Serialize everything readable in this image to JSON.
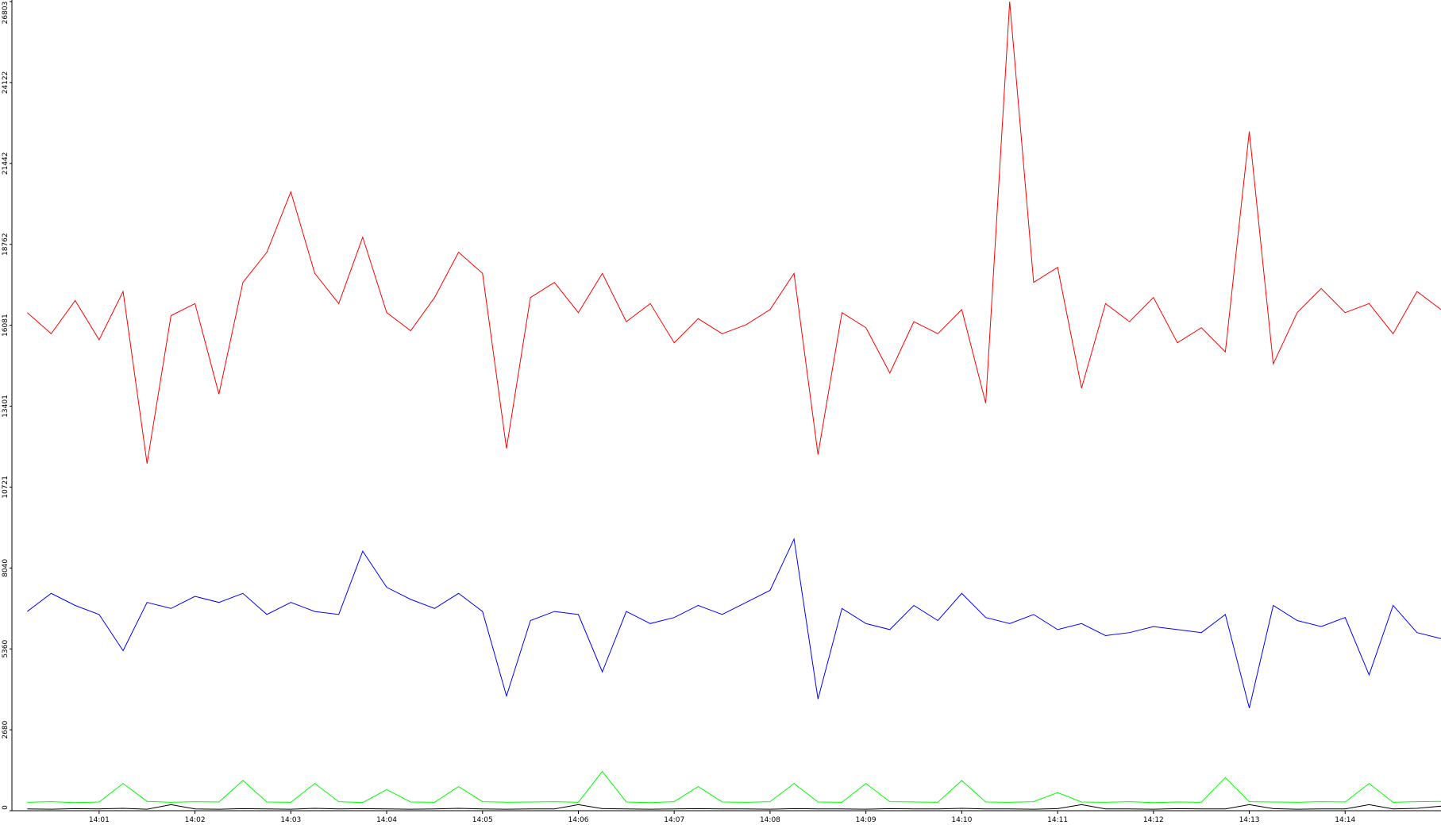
{
  "chart_data": {
    "type": "line",
    "x": [
      0.25,
      0.5,
      0.75,
      1,
      1.25,
      1.5,
      1.75,
      2,
      2.25,
      2.5,
      2.75,
      3,
      3.25,
      3.5,
      3.75,
      4,
      4.25,
      4.5,
      4.75,
      5,
      5.25,
      5.5,
      5.75,
      6,
      6.25,
      6.5,
      6.75,
      7,
      7.25,
      7.5,
      7.75,
      8,
      8.25,
      8.5,
      8.75,
      9,
      9.25,
      9.5,
      9.75,
      10,
      10.25,
      10.5,
      10.75,
      11,
      11.25,
      11.5,
      11.75,
      12,
      12.25,
      12.5,
      12.75,
      13,
      13.25,
      13.5,
      13.75,
      14,
      14.25,
      14.5,
      14.75,
      15
    ],
    "series": [
      {
        "color": "#ff0000",
        "values": [
          16500,
          15800,
          16900,
          15600,
          17200,
          11500,
          16400,
          16800,
          13800,
          17500,
          18500,
          20500,
          17800,
          16800,
          19000,
          16500,
          15900,
          17000,
          18500,
          17800,
          12000,
          17000,
          17500,
          16500,
          17800,
          16200,
          16800,
          15500,
          16300,
          15800,
          16100,
          16600,
          17800,
          11800,
          16500,
          16000,
          14500,
          16200,
          15800,
          16600,
          13500,
          26803,
          17500,
          18000,
          14000,
          16800,
          16200,
          17000,
          15500,
          16000,
          15200,
          22500,
          14800,
          16500,
          17300,
          16500,
          16800,
          15800,
          17200,
          16600
        ]
      },
      {
        "color": "#0000ff",
        "values": [
          6600,
          7200,
          6800,
          6500,
          5300,
          6900,
          6700,
          7100,
          6900,
          7200,
          6500,
          6900,
          6600,
          6500,
          8600,
          7400,
          7000,
          6700,
          7200,
          6600,
          3800,
          6300,
          6600,
          6500,
          4600,
          6600,
          6200,
          6400,
          6800,
          6500,
          6900,
          7300,
          9000,
          3700,
          6700,
          6200,
          6000,
          6800,
          6300,
          7200,
          6400,
          6200,
          6500,
          6000,
          6200,
          5800,
          5900,
          6100,
          6000,
          5900,
          6500,
          3400,
          6800,
          6300,
          6100,
          6400,
          4500,
          6800,
          5900,
          5700
        ]
      },
      {
        "color": "#00ff00",
        "values": [
          280,
          300,
          270,
          290,
          900,
          310,
          280,
          300,
          290,
          1000,
          290,
          280,
          900,
          300,
          270,
          700,
          290,
          280,
          800,
          300,
          280,
          290,
          300,
          280,
          1300,
          290,
          270,
          300,
          800,
          290,
          280,
          300,
          900,
          290,
          280,
          900,
          300,
          290,
          280,
          1000,
          290,
          280,
          300,
          600,
          290,
          280,
          300,
          270,
          290,
          280,
          1100,
          300,
          290,
          280,
          300,
          290,
          900,
          280,
          300,
          310
        ]
      },
      {
        "color": "#000000",
        "values": [
          60,
          50,
          70,
          60,
          80,
          50,
          200,
          60,
          50,
          70,
          60,
          50,
          80,
          60,
          70,
          60,
          50,
          60,
          80,
          60,
          50,
          60,
          60,
          200,
          70,
          60,
          50,
          60,
          70,
          60,
          60,
          50,
          70,
          60,
          60,
          50,
          70,
          60,
          60,
          80,
          60,
          60,
          50,
          70,
          200,
          60,
          60,
          50,
          70,
          60,
          60,
          200,
          70,
          50,
          60,
          60,
          200,
          60,
          80,
          150
        ]
      }
    ],
    "xlim": [
      0.09,
      15
    ],
    "xticks": [
      {
        "value": 1,
        "label": "14:01"
      },
      {
        "value": 2,
        "label": "14:02"
      },
      {
        "value": 3,
        "label": "14:03"
      },
      {
        "value": 4,
        "label": "14:04"
      },
      {
        "value": 5,
        "label": "14:05"
      },
      {
        "value": 6,
        "label": "14:06"
      },
      {
        "value": 7,
        "label": "14:07"
      },
      {
        "value": 8,
        "label": "14:08"
      },
      {
        "value": 9,
        "label": "14:09"
      },
      {
        "value": 10,
        "label": "14:10"
      },
      {
        "value": 11,
        "label": "14:11"
      },
      {
        "value": 12,
        "label": "14:12"
      },
      {
        "value": 13,
        "label": "14:13"
      },
      {
        "value": 14,
        "label": "14:14"
      }
    ],
    "ylim": [
      0,
      26803
    ],
    "yticks": [
      0,
      2680,
      5360,
      8040,
      10721,
      13401,
      16081,
      18762,
      21442,
      24122,
      26803
    ]
  }
}
